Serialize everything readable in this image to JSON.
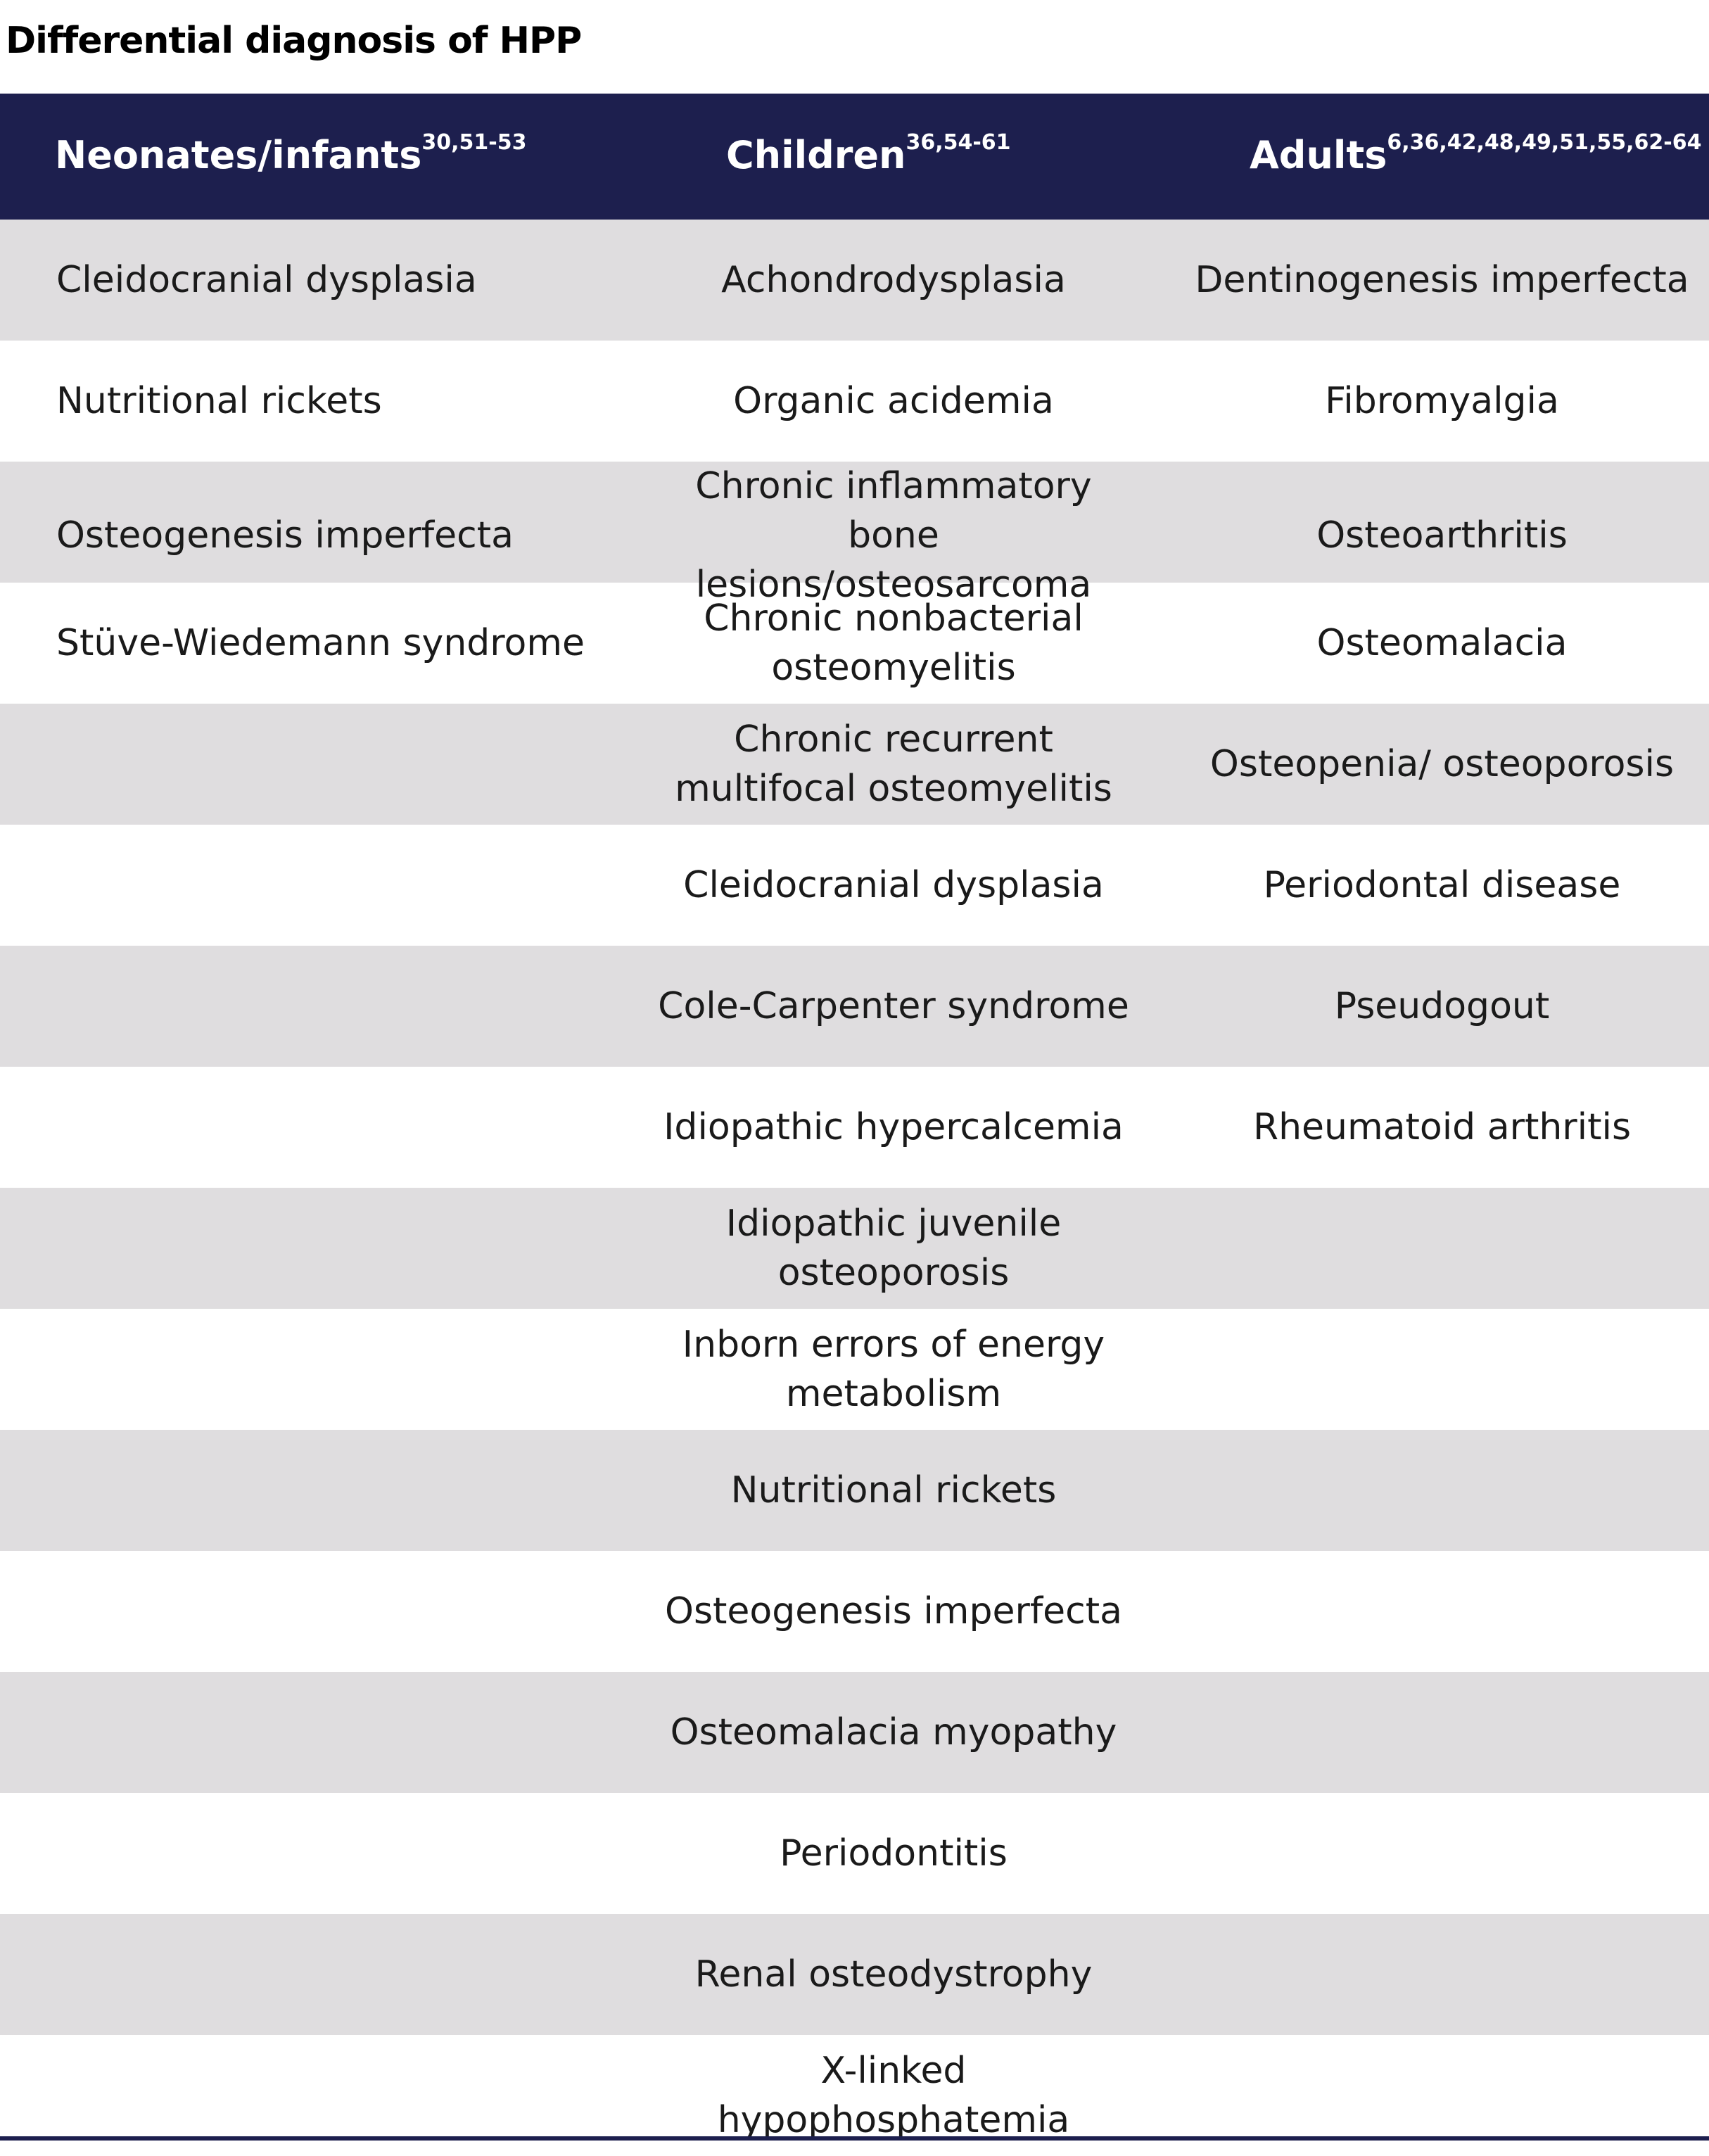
{
  "title": "Differential diagnosis of HPP",
  "header_color": "#1d1f4e",
  "stripe_color": "#dfdddf",
  "columns": [
    {
      "label": "Neonates/infants",
      "refs": "30,51-53"
    },
    {
      "label": "Children",
      "refs": "36,54-61"
    },
    {
      "label": "Adults",
      "refs": "6,36,42,48,49,51,55,62-64"
    }
  ],
  "rows": [
    [
      "Cleidocranial dysplasia",
      "Achondrodysplasia",
      "Dentinogenesis imperfecta"
    ],
    [
      "Nutritional rickets",
      "Organic acidemia",
      "Fibromyalgia"
    ],
    [
      "Osteogenesis imperfecta",
      "Chronic inflammatory bone lesions/osteosarcoma",
      "Osteoarthritis"
    ],
    [
      "Stüve-Wiedemann syndrome",
      "Chronic nonbacterial osteomyelitis",
      "Osteomalacia"
    ],
    [
      "",
      "Chronic recurrent multifocal osteomyelitis",
      "Osteopenia/ osteoporosis"
    ],
    [
      "",
      "Cleidocranial dysplasia",
      "Periodontal disease"
    ],
    [
      "",
      "Cole-Carpenter syndrome",
      "Pseudogout"
    ],
    [
      "",
      "Idiopathic hypercalcemia",
      "Rheumatoid arthritis"
    ],
    [
      "",
      "Idiopathic juvenile osteoporosis",
      ""
    ],
    [
      "",
      "Inborn errors of energy metabolism",
      ""
    ],
    [
      "",
      "Nutritional rickets",
      ""
    ],
    [
      "",
      "Osteogenesis imperfecta",
      ""
    ],
    [
      "",
      "Osteomalacia myopathy",
      ""
    ],
    [
      "",
      "Periodontitis",
      ""
    ],
    [
      "",
      "Renal osteodystrophy",
      ""
    ],
    [
      "",
      "X-linked hypophosphatemia",
      ""
    ]
  ]
}
